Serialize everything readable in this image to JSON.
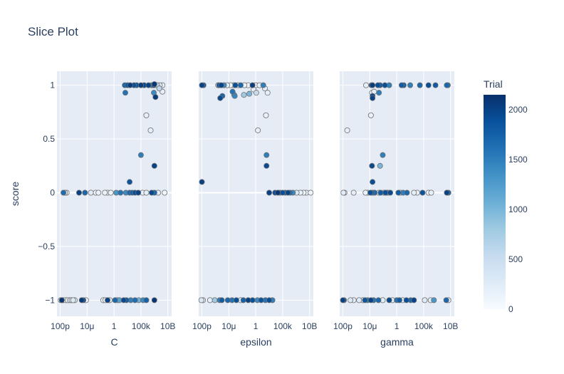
{
  "chart_data": {
    "type": "scatter",
    "title": "Slice Plot",
    "ylabel": "score",
    "ylim": [
      -1.15,
      1.13
    ],
    "yticks": [
      1,
      0.5,
      0,
      -1
    ],
    "ytick_labels": [
      "1",
      "0.5",
      "0",
      "−1"
    ],
    "extra_ytick": {
      "value": -0.5,
      "label": "−0.5"
    },
    "xscale": "log",
    "xlim_log10": [
      -10.6,
      10.7
    ],
    "xticks_log10": [
      -10,
      -5,
      0,
      5,
      10
    ],
    "xtick_labels": [
      "100p",
      "10μ",
      "1",
      "100k",
      "10B"
    ],
    "grid": true,
    "colorscale": [
      "#f7fbff",
      "#deebf7",
      "#c6dbef",
      "#9ecae1",
      "#6baed6",
      "#4292c6",
      "#2171b5",
      "#08519c",
      "#08306b"
    ],
    "colorbar": {
      "title": "Trial",
      "min": 0,
      "max": 2150,
      "ticks": [
        0,
        500,
        1000,
        1500,
        2000
      ],
      "tick_labels": [
        "0",
        "500",
        "1000",
        "1500",
        "2000"
      ]
    },
    "panels": [
      {
        "xlabel": "C",
        "points": [
          [
            -9.9,
            -1,
            40
          ],
          [
            -9.7,
            -1,
            2100
          ],
          [
            -9.5,
            -1,
            60
          ],
          [
            -9.0,
            -1,
            80
          ],
          [
            -8.6,
            -1,
            100
          ],
          [
            -8.2,
            -1,
            150
          ],
          [
            -7.9,
            -1,
            200
          ],
          [
            -7.6,
            -1,
            300
          ],
          [
            -7.3,
            -1,
            120
          ],
          [
            -6.0,
            -1,
            2050
          ],
          [
            -5.7,
            -1,
            1950
          ],
          [
            -5.2,
            -1,
            90
          ],
          [
            -2.0,
            -1,
            70
          ],
          [
            -1.6,
            -1,
            100
          ],
          [
            -1.2,
            -1,
            2000
          ],
          [
            -0.8,
            -1,
            150
          ],
          [
            0.2,
            -1,
            1700
          ],
          [
            0.6,
            -1,
            200
          ],
          [
            1.0,
            -1,
            1200
          ],
          [
            1.8,
            -1,
            1950
          ],
          [
            2.3,
            -1,
            1800
          ],
          [
            3.1,
            -1,
            1500
          ],
          [
            3.9,
            -1,
            1650
          ],
          [
            4.6,
            -1,
            1050
          ],
          [
            5.4,
            -1,
            1400
          ],
          [
            6.0,
            -1,
            1750
          ],
          [
            7.5,
            -1,
            2100
          ],
          [
            -9.4,
            0,
            1650
          ],
          [
            -9.1,
            0,
            300
          ],
          [
            -8.8,
            0,
            80
          ],
          [
            -6.5,
            0,
            2000
          ],
          [
            -5.4,
            0,
            1700
          ],
          [
            -4.3,
            0,
            250
          ],
          [
            -3.4,
            0,
            100
          ],
          [
            -2.9,
            0,
            150
          ],
          [
            -1.7,
            0,
            150
          ],
          [
            -1.2,
            0,
            80
          ],
          [
            -0.6,
            0,
            120
          ],
          [
            0.4,
            0,
            1300
          ],
          [
            1.2,
            0,
            1600
          ],
          [
            2.2,
            0,
            1400
          ],
          [
            2.9,
            0,
            1700
          ],
          [
            3.4,
            0,
            1750
          ],
          [
            3.9,
            0,
            1900
          ],
          [
            4.5,
            0,
            2000
          ],
          [
            5.3,
            0,
            150
          ],
          [
            6.0,
            0,
            200
          ],
          [
            7.0,
            0,
            1950
          ],
          [
            7.5,
            0,
            1700
          ],
          [
            8.2,
            0,
            200
          ],
          [
            9.4,
            0,
            100
          ],
          [
            2.0,
            1,
            1700
          ],
          [
            2.5,
            1,
            1800
          ],
          [
            3.0,
            1,
            2050
          ],
          [
            3.7,
            1,
            1900
          ],
          [
            4.2,
            1,
            1850
          ],
          [
            5.0,
            1,
            2050
          ],
          [
            5.6,
            1,
            1950
          ],
          [
            6.4,
            1,
            2000
          ],
          [
            7.0,
            1,
            1500
          ],
          [
            7.4,
            1,
            1800
          ],
          [
            8.0,
            1,
            600
          ],
          [
            8.5,
            1,
            300
          ],
          [
            9.0,
            1,
            150
          ],
          [
            7.5,
            1.01,
            2100
          ],
          [
            2.1,
            0.93,
            1600
          ],
          [
            7.4,
            0.93,
            1400
          ],
          [
            7.7,
            0.89,
            2050
          ],
          [
            9.0,
            0.94,
            200
          ],
          [
            8.4,
            0.97,
            600
          ],
          [
            6.0,
            0.72,
            200
          ],
          [
            6.8,
            0.58,
            200
          ],
          [
            5.0,
            0.35,
            1500
          ],
          [
            2.9,
            0.1,
            1850
          ],
          [
            7.5,
            0.25,
            2000
          ]
        ]
      },
      {
        "xlabel": "epsilon",
        "points": [
          [
            -10.0,
            1,
            2000
          ],
          [
            -9.7,
            1,
            1800
          ],
          [
            -7.0,
            1,
            300
          ],
          [
            -6.8,
            1,
            1800
          ],
          [
            -6.4,
            1,
            2000
          ],
          [
            -5.9,
            1,
            1400
          ],
          [
            -5.3,
            1,
            200
          ],
          [
            -4.7,
            1,
            100
          ],
          [
            -4.1,
            1,
            80
          ],
          [
            -3.8,
            1,
            1900
          ],
          [
            -3.3,
            1,
            200
          ],
          [
            -2.8,
            1,
            1700
          ],
          [
            -2.1,
            1,
            150
          ],
          [
            -1.4,
            1,
            100
          ],
          [
            -0.6,
            1,
            2050
          ],
          [
            0.0,
            1,
            150
          ],
          [
            0.7,
            1,
            200
          ],
          [
            1.4,
            1,
            1500
          ],
          [
            1.7,
            0.97,
            200
          ],
          [
            2.2,
            0.93,
            200
          ],
          [
            -6.6,
            0.88,
            1950
          ],
          [
            -6.2,
            0.9,
            1700
          ],
          [
            -4.3,
            0.94,
            1600
          ],
          [
            -4.0,
            0.91,
            1300
          ],
          [
            -3.9,
            0.9,
            1450
          ],
          [
            -2.2,
            0.91,
            800
          ],
          [
            -1.2,
            0.92,
            1000
          ],
          [
            -0.4,
            0.96,
            200
          ],
          [
            0.1,
            0.93,
            500
          ],
          [
            1.9,
            0.72,
            150
          ],
          [
            0.4,
            0.58,
            200
          ],
          [
            -10.0,
            0.1,
            2000
          ],
          [
            2.0,
            0.35,
            1500
          ],
          [
            2.0,
            0.25,
            1950
          ],
          [
            2.5,
            0,
            2000
          ],
          [
            3.6,
            0,
            1900
          ],
          [
            4.1,
            0,
            2100
          ],
          [
            4.5,
            0,
            1700
          ],
          [
            5.0,
            0,
            1900
          ],
          [
            5.5,
            0,
            1800
          ],
          [
            6.0,
            0,
            2000
          ],
          [
            6.4,
            0,
            1650
          ],
          [
            6.9,
            0,
            1400
          ],
          [
            7.6,
            0,
            300
          ],
          [
            8.3,
            0,
            150
          ],
          [
            8.9,
            0,
            120
          ],
          [
            9.4,
            0,
            80
          ],
          [
            10.2,
            0,
            100
          ],
          [
            -10.1,
            -1,
            300
          ],
          [
            -9.8,
            -1,
            150
          ],
          [
            -8.5,
            -1,
            200
          ],
          [
            -7.6,
            -1,
            800
          ],
          [
            -6.7,
            -1,
            1500
          ],
          [
            -6.3,
            -1,
            1800
          ],
          [
            -5.2,
            -1,
            1700
          ],
          [
            -4.4,
            -1,
            1600
          ],
          [
            -3.6,
            -1,
            1900
          ],
          [
            -2.8,
            -1,
            200
          ],
          [
            -2.3,
            -1,
            1750
          ],
          [
            -1.4,
            -1,
            2000
          ],
          [
            -0.6,
            -1,
            1900
          ],
          [
            0.3,
            -1,
            1400
          ],
          [
            1.0,
            -1,
            1850
          ],
          [
            1.8,
            -1,
            1600
          ],
          [
            2.5,
            -1,
            1900
          ],
          [
            3.1,
            -1,
            1500
          ]
        ]
      },
      {
        "xlabel": "gamma",
        "points": [
          [
            -10.0,
            -1,
            2000
          ],
          [
            -9.8,
            -1,
            1900
          ],
          [
            -8.6,
            -1,
            300
          ],
          [
            -8.0,
            -1,
            200
          ],
          [
            -7.0,
            -1,
            250
          ],
          [
            -6.3,
            -1,
            150
          ],
          [
            -5.9,
            -1,
            1850
          ],
          [
            -5.4,
            -1,
            1500
          ],
          [
            -4.8,
            -1,
            2000
          ],
          [
            -4.3,
            -1,
            1600
          ],
          [
            -3.4,
            -1,
            1700
          ],
          [
            -2.6,
            -1,
            200
          ],
          [
            -1.4,
            -1,
            1950
          ],
          [
            -0.8,
            -1,
            150
          ],
          [
            0.0,
            -1,
            1600
          ],
          [
            0.5,
            -1,
            1800
          ],
          [
            1.1,
            -1,
            200
          ],
          [
            1.8,
            -1,
            1900
          ],
          [
            2.6,
            -1,
            1700
          ],
          [
            3.2,
            -1,
            2000
          ],
          [
            5.2,
            -1,
            250
          ],
          [
            6.3,
            -1,
            200
          ],
          [
            6.9,
            -1,
            1300
          ],
          [
            9.2,
            -1,
            1700
          ],
          [
            9.6,
            -1,
            150
          ],
          [
            -9.9,
            0,
            250
          ],
          [
            -9.7,
            0,
            150
          ],
          [
            -8.0,
            0,
            200
          ],
          [
            -5.8,
            0,
            120
          ],
          [
            -5.4,
            0,
            100
          ],
          [
            -4.9,
            0,
            1900
          ],
          [
            -4.6,
            0,
            1750
          ],
          [
            -4.3,
            0,
            1350
          ],
          [
            -4.1,
            0,
            1700
          ],
          [
            -3.3,
            0,
            200
          ],
          [
            -3.0,
            0,
            1800
          ],
          [
            -2.4,
            0,
            300
          ],
          [
            -2.1,
            0,
            1900
          ],
          [
            -1.9,
            0,
            1600
          ],
          [
            -1.6,
            0,
            200
          ],
          [
            -1.2,
            0,
            1950
          ],
          [
            0.3,
            0,
            1800
          ],
          [
            0.7,
            0,
            200
          ],
          [
            1.2,
            0,
            1500
          ],
          [
            1.9,
            0,
            1700
          ],
          [
            3.2,
            0,
            200
          ],
          [
            3.8,
            0,
            120
          ],
          [
            4.8,
            0,
            1850
          ],
          [
            5.9,
            0,
            100
          ],
          [
            6.4,
            0,
            150
          ],
          [
            9.3,
            0,
            2000
          ],
          [
            9.6,
            0,
            1700
          ],
          [
            -5.7,
            1,
            200
          ],
          [
            -4.7,
            1,
            2000
          ],
          [
            -4.5,
            1,
            2050
          ],
          [
            -3.5,
            1,
            1900
          ],
          [
            -3.1,
            1,
            1850
          ],
          [
            -2.2,
            1,
            1900
          ],
          [
            -1.4,
            1,
            1500
          ],
          [
            0.9,
            1,
            1800
          ],
          [
            1.3,
            1,
            1750
          ],
          [
            2.5,
            1,
            1500
          ],
          [
            4.3,
            1,
            1700
          ],
          [
            5.9,
            1,
            1900
          ],
          [
            7.2,
            1,
            1800
          ],
          [
            9.3,
            1,
            1700
          ],
          [
            9.5,
            1,
            1650
          ],
          [
            -4.5,
            0.9,
            1950
          ],
          [
            -4.6,
            0.93,
            150
          ],
          [
            -4.2,
            0.94,
            200
          ],
          [
            -3.3,
            0.93,
            1500
          ],
          [
            -4.5,
            0.88,
            2000
          ],
          [
            -4.8,
            0.72,
            150
          ],
          [
            -9.2,
            0.58,
            200
          ],
          [
            -4.6,
            0.25,
            1950
          ],
          [
            -3.1,
            0.25,
            1000
          ],
          [
            -2.6,
            0.35,
            1500
          ],
          [
            -4.5,
            0.1,
            1900
          ]
        ]
      }
    ]
  }
}
